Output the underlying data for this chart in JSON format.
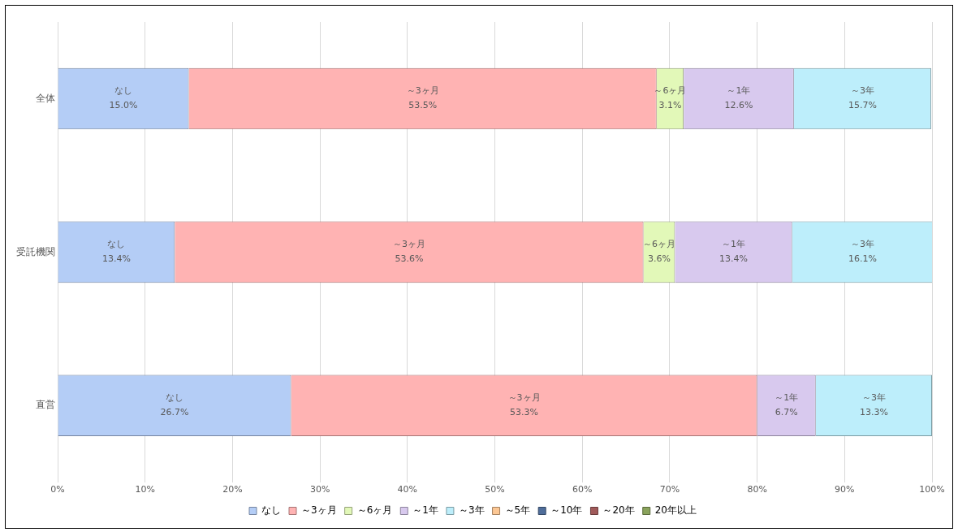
{
  "chart_data": {
    "type": "bar",
    "orientation": "horizontal",
    "stacked": true,
    "categories": [
      "全体",
      "受託機関",
      "直営"
    ],
    "series": [
      {
        "name": "なし",
        "color": "#b4cdf6",
        "values": [
          15.0,
          13.4,
          26.7
        ],
        "value_labels": [
          "15.0%",
          "13.4%",
          "26.7%"
        ]
      },
      {
        "name": "～3ヶ月",
        "color": "#ffb3b3",
        "values": [
          53.5,
          53.6,
          53.3
        ],
        "value_labels": [
          "53.5%",
          "53.6%",
          "53.3%"
        ]
      },
      {
        "name": "～6ヶ月",
        "color": "#e2f8b8",
        "values": [
          3.1,
          3.6,
          0
        ],
        "value_labels": [
          "3.1%",
          "3.6%",
          null
        ]
      },
      {
        "name": "～1年",
        "color": "#d8c9ee",
        "values": [
          12.6,
          13.4,
          6.7
        ],
        "value_labels": [
          "12.6%",
          "13.4%",
          "6.7%"
        ]
      },
      {
        "name": "～3年",
        "color": "#bdeefb",
        "values": [
          15.7,
          16.1,
          13.3
        ],
        "value_labels": [
          "15.7%",
          "16.1%",
          "13.3%"
        ]
      },
      {
        "name": "～5年",
        "color": "#fcc794",
        "values": [
          0,
          0,
          0
        ],
        "value_labels": [
          null,
          null,
          null
        ]
      },
      {
        "name": "～10年",
        "color": "#4f6d9a",
        "values": [
          0,
          0,
          0
        ],
        "value_labels": [
          null,
          null,
          null
        ]
      },
      {
        "name": "～20年",
        "color": "#a05a5a",
        "values": [
          0,
          0,
          0
        ],
        "value_labels": [
          null,
          null,
          null
        ]
      },
      {
        "name": "20年以上",
        "color": "#8aa35c",
        "values": [
          0,
          0,
          0
        ],
        "value_labels": [
          null,
          null,
          null
        ]
      }
    ],
    "xlim": [
      0,
      100
    ],
    "xticks": [
      {
        "value": 0,
        "label": "0%"
      },
      {
        "value": 10,
        "label": "10%"
      },
      {
        "value": 20,
        "label": "20%"
      },
      {
        "value": 30,
        "label": "30%"
      },
      {
        "value": 40,
        "label": "40%"
      },
      {
        "value": 50,
        "label": "50%"
      },
      {
        "value": 60,
        "label": "60%"
      },
      {
        "value": 70,
        "label": "70%"
      },
      {
        "value": 80,
        "label": "80%"
      },
      {
        "value": 90,
        "label": "90%"
      },
      {
        "value": 100,
        "label": "100%"
      }
    ],
    "grid": "x",
    "legend": "bottom"
  }
}
